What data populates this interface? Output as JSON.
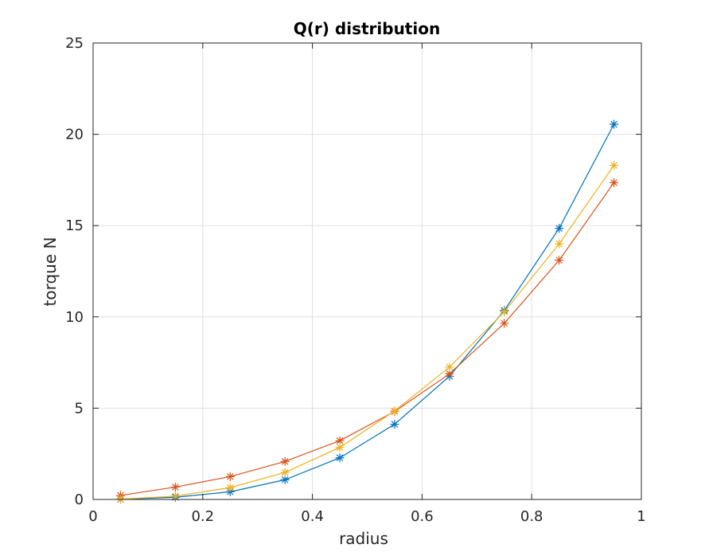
{
  "chart_data": {
    "type": "line",
    "title": "Q(r) distribution",
    "xlabel": "radius",
    "ylabel": "torque N",
    "xlim": [
      0,
      1
    ],
    "ylim": [
      0,
      25
    ],
    "xticks": [
      0,
      0.2,
      0.4,
      0.6,
      0.8,
      1
    ],
    "xtick_labels": [
      "0",
      "0.2",
      "0.4",
      "0.6",
      "0.8",
      "1"
    ],
    "yticks": [
      0,
      5,
      10,
      15,
      20,
      25
    ],
    "ytick_labels": [
      "0",
      "5",
      "10",
      "15",
      "20",
      "25"
    ],
    "grid": true,
    "marker": "asterisk",
    "x": [
      0.05,
      0.15,
      0.25,
      0.35,
      0.45,
      0.55,
      0.65,
      0.75,
      0.85,
      0.95
    ],
    "series": [
      {
        "color": "#0072BD",
        "values": [
          0.01,
          0.12,
          0.42,
          1.08,
          2.28,
          4.12,
          6.75,
          10.35,
          14.85,
          20.55
        ]
      },
      {
        "color": "#D95319",
        "values": [
          0.22,
          0.68,
          1.25,
          2.08,
          3.22,
          4.82,
          6.88,
          9.65,
          13.1,
          17.35
        ]
      },
      {
        "color": "#EDB120",
        "values": [
          0.02,
          0.18,
          0.65,
          1.48,
          2.85,
          4.85,
          7.25,
          10.28,
          14.0,
          18.3
        ]
      }
    ]
  }
}
